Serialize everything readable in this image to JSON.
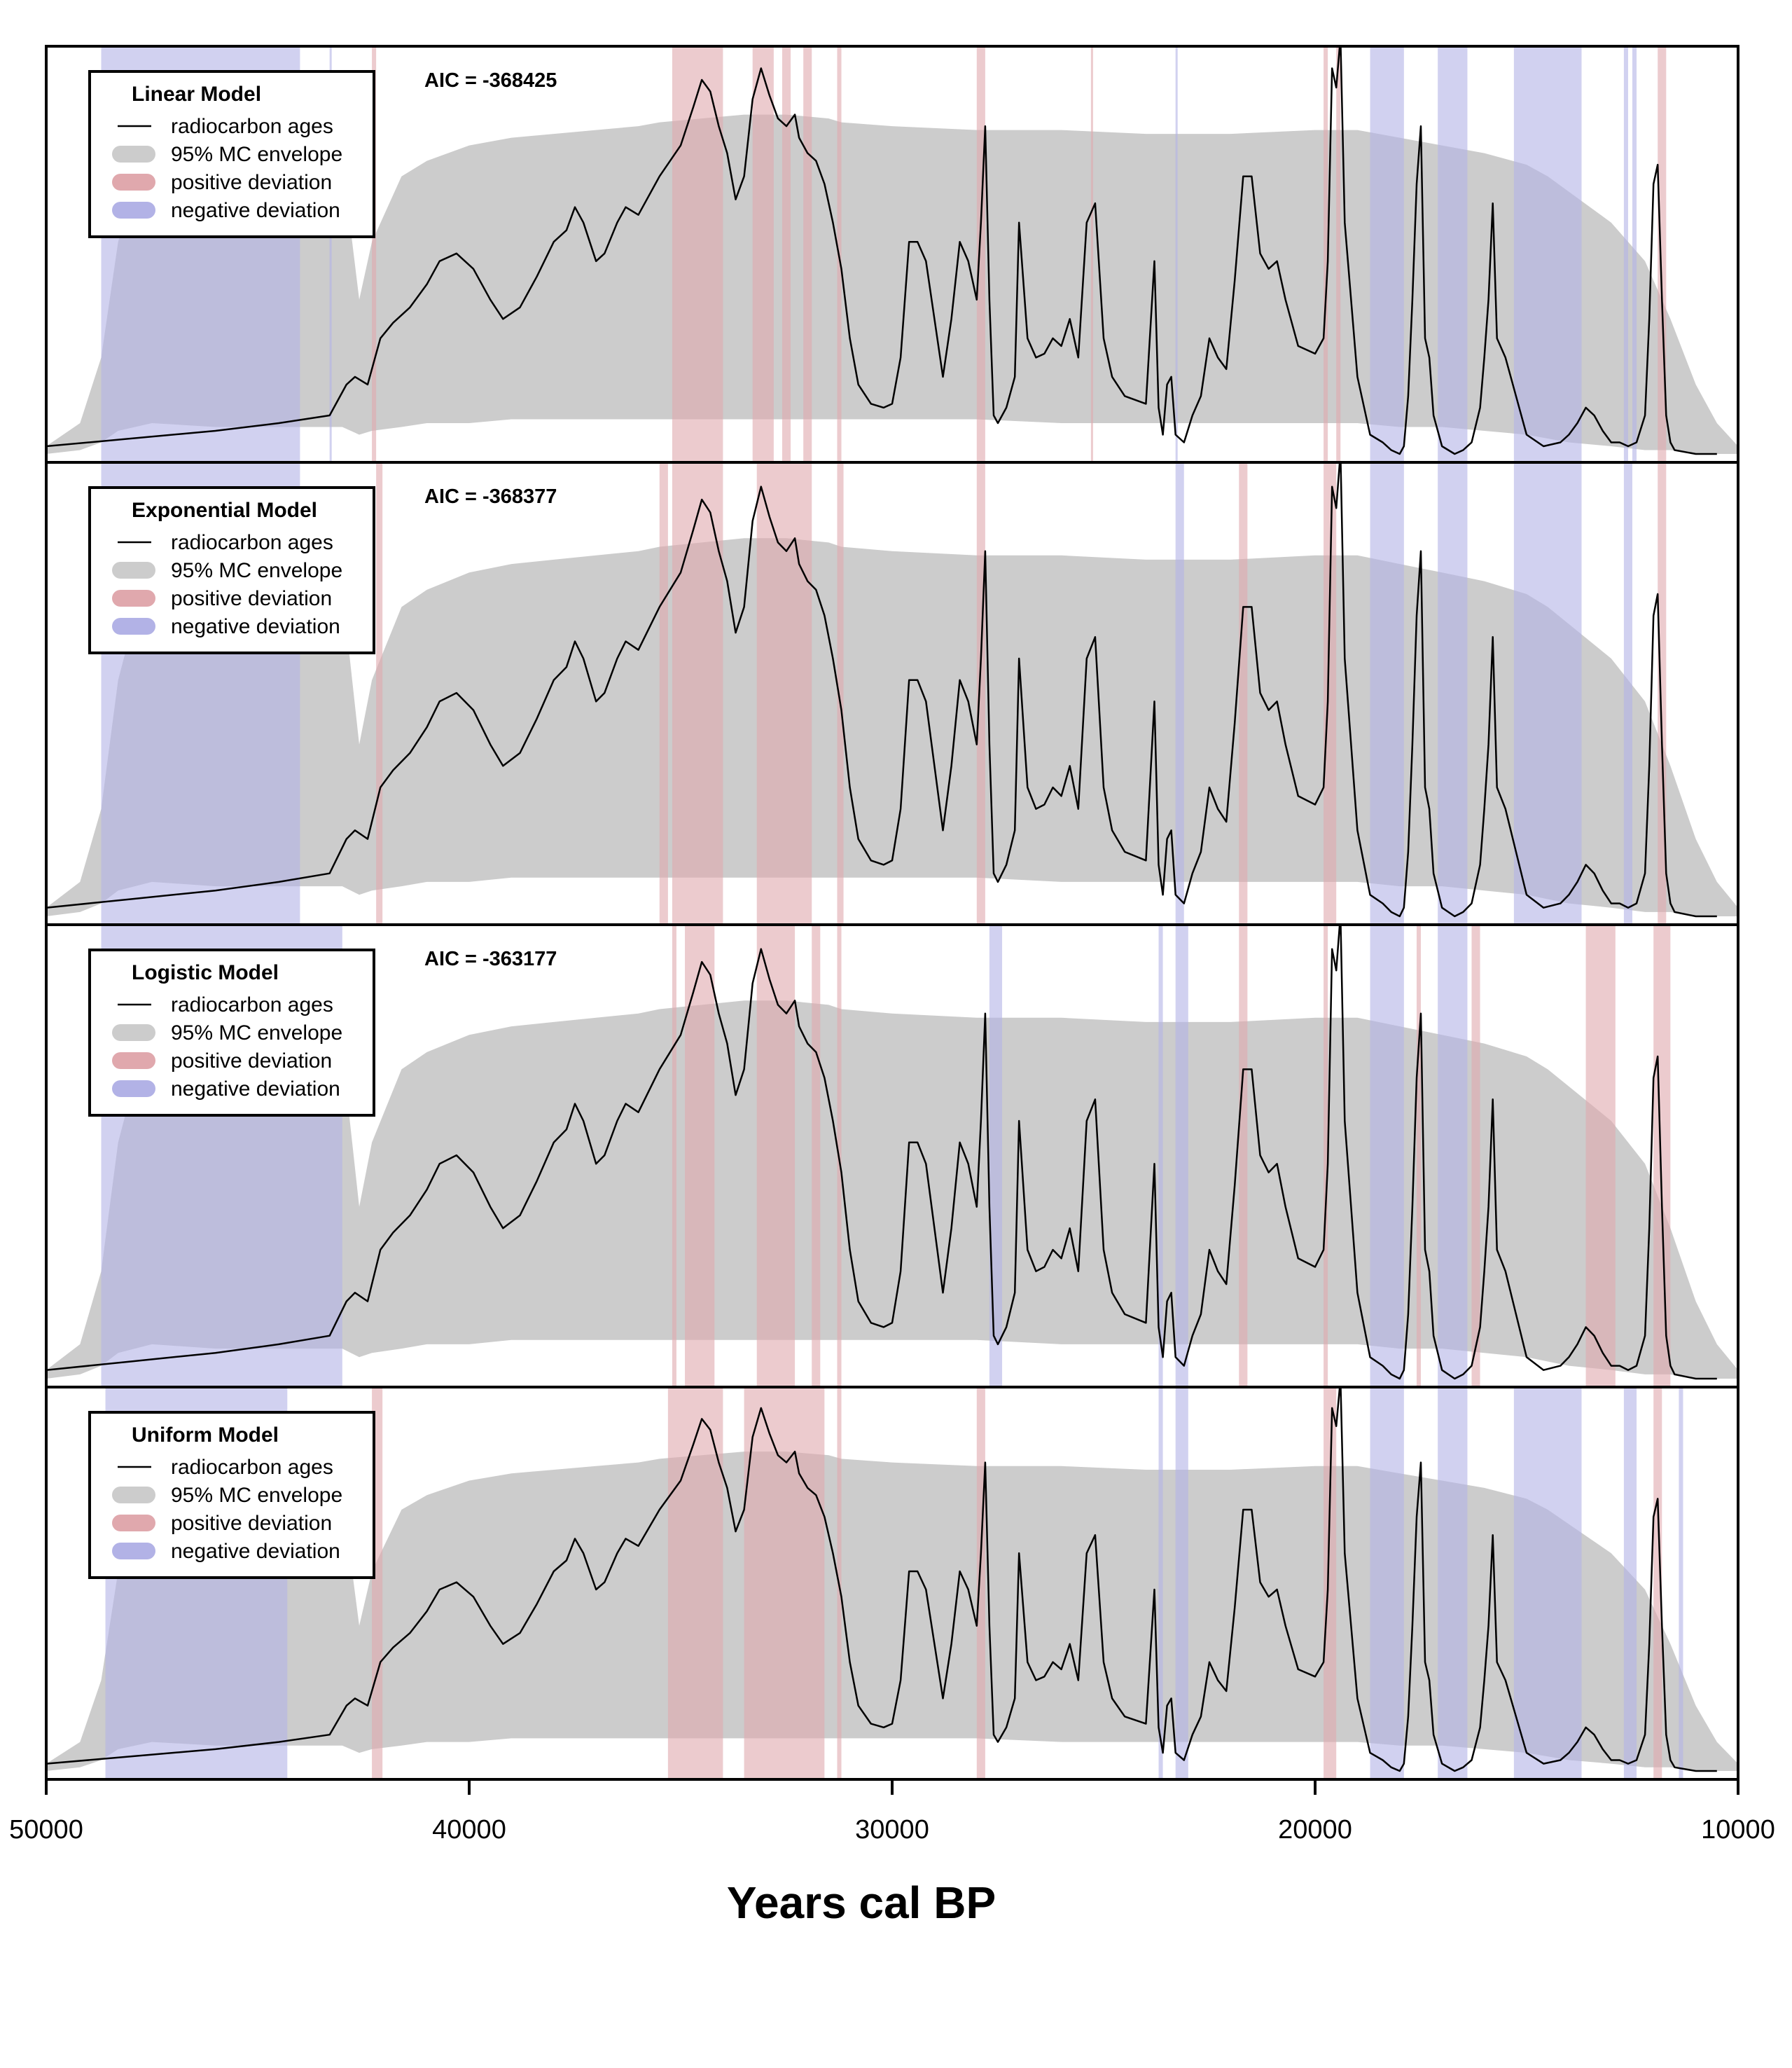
{
  "chart_data": {
    "type": "area",
    "xlabel": "Years cal BP",
    "xlim": [
      50000,
      10000
    ],
    "x_reversed": true,
    "x_ticks": [
      50000,
      40000,
      30000,
      20000,
      10000
    ],
    "x_tick_labels": [
      "50000",
      "40000",
      "30000",
      "20000",
      "10000"
    ],
    "ylabel": "",
    "legend_entries": [
      "radiocarbon ages",
      "95% MC envelope",
      "positive deviation",
      "negative deviation"
    ],
    "legend_position": "top-left",
    "colors": {
      "radiocarbon_line": "#000000",
      "envelope": "#cccccc",
      "positive": "#e0a8ad",
      "negative": "#b2b2e6"
    },
    "curve_x": [
      50000,
      48000,
      46000,
      44500,
      43300,
      42900,
      42700,
      42400,
      42100,
      41800,
      41400,
      41000,
      40700,
      40300,
      39900,
      39500,
      39200,
      38800,
      38400,
      38000,
      37700,
      37500,
      37300,
      37000,
      36800,
      36500,
      36300,
      36000,
      35500,
      35000,
      34700,
      34500,
      34300,
      34100,
      33900,
      33700,
      33500,
      33300,
      33100,
      32900,
      32700,
      32500,
      32300,
      32200,
      32000,
      31800,
      31600,
      31400,
      31200,
      31000,
      30800,
      30500,
      30200,
      30000,
      29800,
      29600,
      29400,
      29200,
      29000,
      28800,
      28600,
      28400,
      28200,
      28000,
      27900,
      27800,
      27700,
      27600,
      27500,
      27300,
      27100,
      27000,
      26800,
      26600,
      26400,
      26200,
      26000,
      25800,
      25600,
      25400,
      25200,
      25000,
      24800,
      24500,
      24000,
      23800,
      23700,
      23600,
      23500,
      23400,
      23300,
      23100,
      22900,
      22700,
      22500,
      22300,
      22100,
      21900,
      21700,
      21500,
      21300,
      21100,
      20900,
      20700,
      20400,
      20000,
      19800,
      19700,
      19600,
      19500,
      19400,
      19300,
      19000,
      18700,
      18400,
      18200,
      18000,
      17900,
      17800,
      17700,
      17600,
      17500,
      17400,
      17300,
      17200,
      17000,
      16700,
      16500,
      16300,
      16100,
      16000,
      15900,
      15800,
      15700,
      15500,
      15000,
      14600,
      14200,
      14000,
      13800,
      13600,
      13400,
      13200,
      13000,
      12800,
      12600,
      12400,
      12200,
      12100,
      12000,
      11900,
      11800,
      11700,
      11600,
      11500,
      11000,
      10500,
      10000
    ],
    "curve_y": [
      0.02,
      0.04,
      0.06,
      0.08,
      0.1,
      0.18,
      0.2,
      0.18,
      0.3,
      0.34,
      0.38,
      0.44,
      0.5,
      0.52,
      0.48,
      0.4,
      0.35,
      0.38,
      0.46,
      0.55,
      0.58,
      0.64,
      0.6,
      0.5,
      0.52,
      0.6,
      0.64,
      0.62,
      0.72,
      0.8,
      0.9,
      0.97,
      0.94,
      0.85,
      0.78,
      0.66,
      0.72,
      0.92,
      1.0,
      0.93,
      0.87,
      0.85,
      0.88,
      0.82,
      0.78,
      0.76,
      0.7,
      0.6,
      0.48,
      0.3,
      0.18,
      0.13,
      0.12,
      0.13,
      0.25,
      0.55,
      0.55,
      0.5,
      0.35,
      0.2,
      0.35,
      0.55,
      0.5,
      0.4,
      0.6,
      0.85,
      0.4,
      0.1,
      0.08,
      0.12,
      0.2,
      0.6,
      0.3,
      0.25,
      0.26,
      0.3,
      0.28,
      0.35,
      0.25,
      0.6,
      0.65,
      0.3,
      0.2,
      0.15,
      0.13,
      0.5,
      0.12,
      0.05,
      0.18,
      0.2,
      0.05,
      0.03,
      0.1,
      0.15,
      0.3,
      0.25,
      0.22,
      0.45,
      0.72,
      0.72,
      0.52,
      0.48,
      0.5,
      0.4,
      0.28,
      0.26,
      0.3,
      0.5,
      1.0,
      0.95,
      1.08,
      0.6,
      0.2,
      0.05,
      0.03,
      0.01,
      0.0,
      0.02,
      0.15,
      0.4,
      0.7,
      0.85,
      0.3,
      0.25,
      0.1,
      0.02,
      0.0,
      0.01,
      0.03,
      0.12,
      0.25,
      0.4,
      0.65,
      0.3,
      0.25,
      0.05,
      0.02,
      0.03,
      0.05,
      0.08,
      0.12,
      0.1,
      0.06,
      0.03,
      0.03,
      0.02,
      0.03,
      0.1,
      0.35,
      0.7,
      0.75,
      0.4,
      0.1,
      0.03,
      0.01,
      0.0,
      0.0
    ],
    "envelope_x": [
      50000,
      49200,
      48700,
      48300,
      47500,
      46000,
      44500,
      43800,
      43500,
      43000,
      42600,
      42300,
      41600,
      41000,
      40000,
      39000,
      38000,
      37000,
      36000,
      35500,
      34500,
      33500,
      32500,
      31500,
      31200,
      30000,
      28000,
      26000,
      24000,
      22000,
      20000,
      19000,
      18000,
      17000,
      16000,
      15000,
      14500,
      14000,
      13000,
      12200,
      11600,
      11000,
      10500,
      10000
    ],
    "envelope_upper": [
      0.02,
      0.08,
      0.25,
      0.55,
      0.85,
      0.88,
      0.86,
      0.84,
      0.82,
      0.76,
      0.4,
      0.55,
      0.72,
      0.76,
      0.8,
      0.82,
      0.83,
      0.84,
      0.85,
      0.86,
      0.87,
      0.88,
      0.88,
      0.87,
      0.86,
      0.85,
      0.84,
      0.84,
      0.83,
      0.83,
      0.84,
      0.84,
      0.82,
      0.8,
      0.78,
      0.75,
      0.72,
      0.68,
      0.6,
      0.5,
      0.35,
      0.18,
      0.08,
      0.02
    ],
    "envelope_lower": [
      0.0,
      0.01,
      0.03,
      0.06,
      0.08,
      0.07,
      0.07,
      0.07,
      0.07,
      0.07,
      0.05,
      0.06,
      0.07,
      0.08,
      0.08,
      0.09,
      0.09,
      0.09,
      0.09,
      0.09,
      0.09,
      0.09,
      0.09,
      0.09,
      0.09,
      0.09,
      0.09,
      0.08,
      0.08,
      0.08,
      0.08,
      0.08,
      0.07,
      0.07,
      0.06,
      0.05,
      0.04,
      0.03,
      0.02,
      0.01,
      0.01,
      0.0,
      0.0,
      0.0
    ],
    "panels": [
      {
        "legend_title": "Linear Model",
        "aic": "AIC = -368425",
        "positive_bands": [
          [
            42300,
            42200
          ],
          [
            35200,
            34000
          ],
          [
            33300,
            32800
          ],
          [
            32600,
            32400
          ],
          [
            32100,
            31900
          ],
          [
            31300,
            31200
          ],
          [
            28000,
            27800
          ],
          [
            25300,
            25250
          ],
          [
            19800,
            19700
          ],
          [
            19500,
            19400
          ],
          [
            11900,
            11700
          ]
        ],
        "negative_bands": [
          [
            48700,
            44000
          ],
          [
            43300,
            43250
          ],
          [
            23300,
            23250
          ],
          [
            18700,
            17900
          ],
          [
            17100,
            16400
          ],
          [
            15300,
            13700
          ],
          [
            12700,
            12600
          ],
          [
            12500,
            12400
          ]
        ]
      },
      {
        "legend_title": "Exponential Model",
        "aic": "AIC = -368377",
        "positive_bands": [
          [
            42200,
            42050
          ],
          [
            35500,
            35300
          ],
          [
            35200,
            34000
          ],
          [
            33200,
            31900
          ],
          [
            31300,
            31150
          ],
          [
            28000,
            27800
          ],
          [
            21800,
            21600
          ],
          [
            19800,
            19500
          ],
          [
            11900,
            11700
          ]
        ],
        "negative_bands": [
          [
            48700,
            44000
          ],
          [
            23300,
            23100
          ],
          [
            18700,
            17900
          ],
          [
            17100,
            16400
          ],
          [
            15300,
            13700
          ],
          [
            12700,
            12500
          ]
        ]
      },
      {
        "legend_title": "Logistic Model",
        "aic": "AIC = -363177",
        "positive_bands": [
          [
            35200,
            35100
          ],
          [
            34900,
            34200
          ],
          [
            33200,
            32300
          ],
          [
            31900,
            31700
          ],
          [
            31300,
            31200
          ],
          [
            21800,
            21600
          ],
          [
            19800,
            19700
          ],
          [
            17600,
            17500
          ],
          [
            16300,
            16100
          ],
          [
            13600,
            12900
          ],
          [
            12000,
            11600
          ]
        ],
        "negative_bands": [
          [
            48700,
            43000
          ],
          [
            27700,
            27400
          ],
          [
            23700,
            23600
          ],
          [
            23300,
            23000
          ],
          [
            18700,
            17900
          ],
          [
            17100,
            16400
          ]
        ]
      },
      {
        "legend_title": "Uniform Model",
        "aic": "",
        "positive_bands": [
          [
            42300,
            42050
          ],
          [
            35300,
            34000
          ],
          [
            33500,
            31600
          ],
          [
            31300,
            31200
          ],
          [
            28000,
            27800
          ],
          [
            19800,
            19500
          ],
          [
            12000,
            11800
          ]
        ],
        "negative_bands": [
          [
            48600,
            44300
          ],
          [
            23700,
            23600
          ],
          [
            23300,
            23000
          ],
          [
            18700,
            17900
          ],
          [
            17100,
            16400
          ],
          [
            15300,
            13700
          ],
          [
            12700,
            12400
          ],
          [
            11400,
            11300
          ]
        ]
      }
    ]
  },
  "legend_items": {
    "line": "radiocarbon ages",
    "envelope": "95% MC envelope",
    "positive": "positive deviation",
    "negative": "negative deviation"
  }
}
